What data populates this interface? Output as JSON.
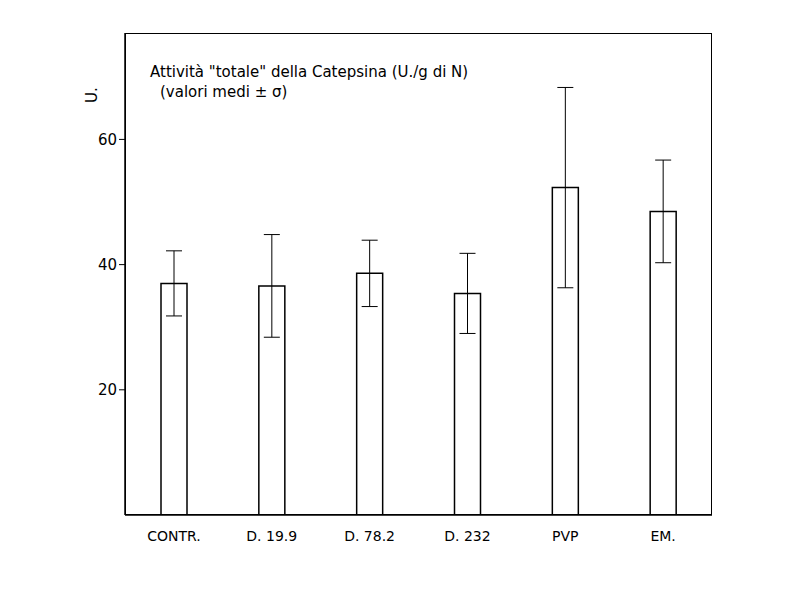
{
  "chart_data": {
    "type": "bar",
    "title": "Attività \"totale\" della Catepsina (U./g di N)",
    "subtitle": "(valori medi ± σ)",
    "y_label": "U.",
    "categories": [
      "CONTR.",
      "D. 19.9",
      "D. 78.2",
      "D. 232",
      "PVP",
      "EM."
    ],
    "values": [
      37,
      36.6,
      38.6,
      35.4,
      52.3,
      48.5
    ],
    "errors": [
      5.2,
      8.2,
      5.3,
      6.4,
      16,
      8.2
    ],
    "color": "#ffffff",
    "ylim": [
      0,
      77
    ],
    "yticks": [
      20,
      40,
      60
    ],
    "grid": false
  }
}
